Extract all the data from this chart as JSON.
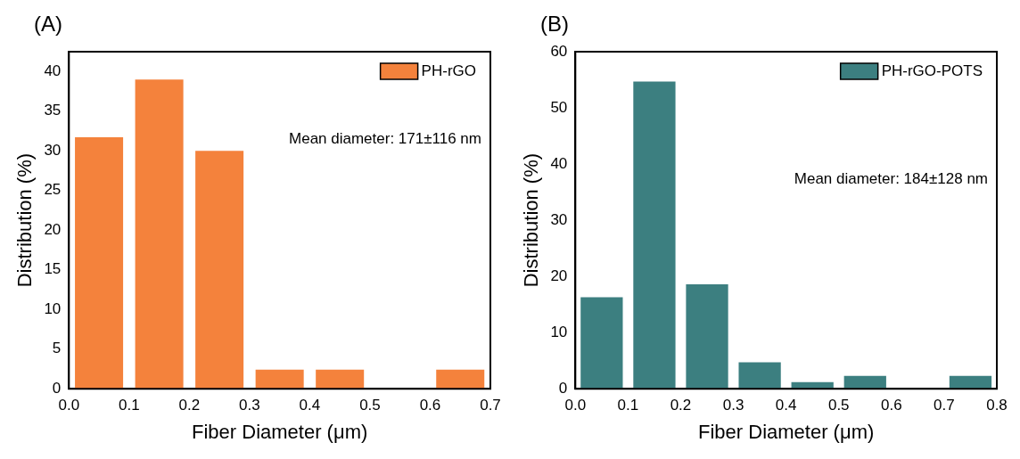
{
  "chart_data": [
    {
      "type": "histogram",
      "title": "(A)",
      "xlabel": "Fiber Diameter (μm)",
      "ylabel": "Distribution (%)",
      "bins": [
        0,
        0.1,
        0.2,
        0.3,
        0.4,
        0.5,
        0.6,
        0.7
      ],
      "series": [
        {
          "name": "PH-rGO",
          "color": "#f4823c",
          "values": [
            31.7,
            39,
            30,
            2.4,
            2.4,
            0,
            2.4
          ]
        }
      ],
      "xlim": [
        0,
        0.7
      ],
      "xticks": [
        {
          "value": 0,
          "label": "0.0"
        },
        0.1,
        0.2,
        0.3,
        0.4,
        0.5,
        0.6,
        0.7
      ],
      "ylim": [
        0,
        42.5
      ],
      "yticks": [
        0,
        5,
        10,
        15,
        20,
        25,
        30,
        35,
        40
      ],
      "legend": "top right",
      "annotations": [
        "Mean diameter: 171±116 nm"
      ]
    },
    {
      "type": "histogram",
      "title": "(B)",
      "xlabel": "Fiber Diameter (μm)",
      "ylabel": "Distribution (%)",
      "bins": [
        0,
        0.1,
        0.2,
        0.3,
        0.4,
        0.5,
        0.6,
        0.7,
        0.8
      ],
      "series": [
        {
          "name": "PH-rGO-POTS",
          "color": "#3c7f80",
          "values": [
            16.3,
            54.7,
            18.6,
            4.7,
            1.2,
            2.3,
            0,
            2.3
          ]
        }
      ],
      "xlim": [
        0,
        0.8
      ],
      "xticks": [
        {
          "value": 0,
          "label": "0.0"
        },
        0.1,
        0.2,
        0.3,
        0.4,
        0.5,
        0.6,
        0.7,
        0.8
      ],
      "ylim": [
        0,
        60
      ],
      "yticks": [
        0,
        10,
        20,
        30,
        40,
        50,
        60
      ],
      "legend": "top right",
      "annotations": [
        "Mean diameter: 184±128 nm"
      ]
    }
  ]
}
